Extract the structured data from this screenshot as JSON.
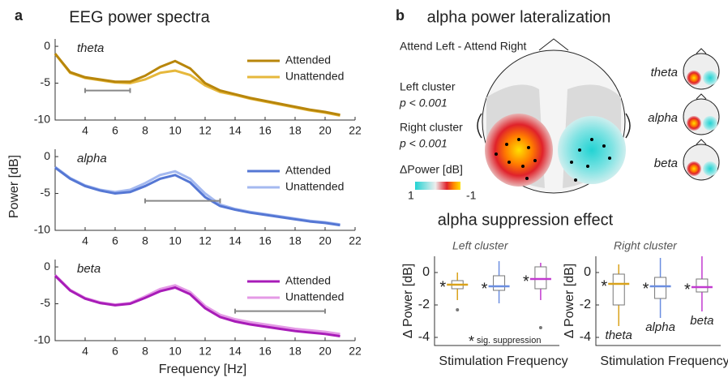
{
  "panel_labels": [
    "a",
    "b"
  ],
  "chart_data": [
    {
      "type": "line",
      "title": "EEG power spectra",
      "label": "theta",
      "ylabel": "Power [dB]",
      "x": [
        2,
        3,
        4,
        5,
        6,
        7,
        8,
        9,
        10,
        11,
        12,
        13,
        14,
        15,
        16,
        17,
        18,
        19,
        20,
        21
      ],
      "series": [
        {
          "name": "Attended",
          "color": "#b8860b",
          "values": [
            -1,
            -3.5,
            -4.2,
            -4.5,
            -4.8,
            -4.8,
            -4,
            -2.8,
            -2,
            -3,
            -5,
            -6,
            -6.5,
            -7,
            -7.4,
            -7.8,
            -8.2,
            -8.6,
            -8.9,
            -9.3
          ]
        },
        {
          "name": "Unattended",
          "color": "#e6b83c",
          "values": [
            -1,
            -3.6,
            -4.3,
            -4.6,
            -4.9,
            -5,
            -4.5,
            -3.6,
            -3.3,
            -3.9,
            -5.3,
            -6.2,
            -6.6,
            -7.1,
            -7.5,
            -7.9,
            -8.3,
            -8.7,
            -9,
            -9.4
          ]
        }
      ],
      "significance_bar": {
        "x": [
          4,
          7
        ],
        "y": -6
      },
      "xlim": [
        2,
        22
      ],
      "xticks": [
        4,
        6,
        8,
        10,
        12,
        14,
        16,
        18,
        20,
        22
      ],
      "ylim": [
        -10,
        1
      ],
      "yticks": [
        0,
        -5,
        -10
      ]
    },
    {
      "type": "line",
      "label": "alpha",
      "x": [
        2,
        3,
        4,
        5,
        6,
        7,
        8,
        9,
        10,
        11,
        12,
        13,
        14,
        15,
        16,
        17,
        18,
        19,
        20,
        21
      ],
      "series": [
        {
          "name": "Attended",
          "color": "#5577d4",
          "values": [
            -1.5,
            -3,
            -4,
            -4.6,
            -5,
            -4.8,
            -4,
            -3,
            -2.5,
            -3.5,
            -5.5,
            -6.7,
            -7.2,
            -7.6,
            -7.9,
            -8.2,
            -8.5,
            -8.8,
            -9,
            -9.3
          ]
        },
        {
          "name": "Unattended",
          "color": "#a4b9f0",
          "values": [
            -1.4,
            -2.9,
            -3.9,
            -4.5,
            -4.8,
            -4.5,
            -3.6,
            -2.5,
            -2,
            -3,
            -5,
            -6.5,
            -7.1,
            -7.5,
            -7.8,
            -8.1,
            -8.4,
            -8.7,
            -8.9,
            -9.2
          ]
        }
      ],
      "significance_bar": {
        "x": [
          8,
          13
        ],
        "y": -6
      },
      "xlim": [
        2,
        22
      ],
      "xticks": [
        4,
        6,
        8,
        10,
        12,
        14,
        16,
        18,
        20,
        22
      ],
      "ylim": [
        -10,
        1
      ],
      "yticks": [
        0,
        -5,
        -10
      ]
    },
    {
      "type": "line",
      "label": "beta",
      "xlabel": "Frequency [Hz]",
      "x": [
        2,
        3,
        4,
        5,
        6,
        7,
        8,
        9,
        10,
        11,
        12,
        13,
        14,
        15,
        16,
        17,
        18,
        19,
        20,
        21
      ],
      "series": [
        {
          "name": "Attended",
          "color": "#a81cb8",
          "values": [
            -1.2,
            -3.2,
            -4.3,
            -4.9,
            -5.2,
            -5,
            -4.2,
            -3.3,
            -2.8,
            -3.7,
            -5.6,
            -6.8,
            -7.4,
            -7.8,
            -8.1,
            -8.4,
            -8.7,
            -8.9,
            -9.1,
            -9.4
          ]
        },
        {
          "name": "Unattended",
          "color": "#e49ae6",
          "values": [
            -1.1,
            -3.1,
            -4.2,
            -4.8,
            -5.1,
            -4.9,
            -4,
            -3,
            -2.5,
            -3.4,
            -5.3,
            -6.5,
            -7.1,
            -7.5,
            -7.8,
            -8.1,
            -8.4,
            -8.6,
            -8.8,
            -9.1
          ]
        }
      ],
      "significance_bar": {
        "x": [
          14,
          20
        ],
        "y": -6
      },
      "xlim": [
        2,
        22
      ],
      "xticks": [
        4,
        6,
        8,
        10,
        12,
        14,
        16,
        18,
        20,
        22
      ],
      "ylim": [
        -10,
        1
      ],
      "yticks": [
        0,
        -5,
        -10
      ]
    },
    {
      "type": "box",
      "title": "alpha suppression effect",
      "subtitle": "Left cluster",
      "xlabel": "Stimulation Frequency",
      "ylabel": "Δ Power [dB]",
      "categories": [
        null,
        null,
        null
      ],
      "markers": [
        "*",
        "*",
        "*"
      ],
      "boxes": [
        {
          "color": "#d9a21b",
          "low": -1.7,
          "q1": -1.0,
          "median": -0.75,
          "q3": -0.5,
          "high": 0,
          "outliers": [
            -2.3
          ]
        },
        {
          "color": "#6b8ee0",
          "low": -1.9,
          "q1": -1.1,
          "median": -0.85,
          "q3": -0.2,
          "high": 0.7,
          "outliers": []
        },
        {
          "color": "#c23ad0",
          "low": -1.7,
          "q1": -1.0,
          "median": -0.4,
          "q3": 0.35,
          "high": 0.6,
          "outliers": [
            -3.4
          ]
        }
      ],
      "note_symbol": "*",
      "note": "sig. suppression",
      "ylim": [
        -4.5,
        1
      ],
      "yticks": [
        0,
        -2,
        -4
      ]
    },
    {
      "type": "box",
      "subtitle": "Right cluster",
      "xlabel": "Stimulation Frequency",
      "ylabel": "Δ Power [dB]",
      "categories": [
        "theta",
        "alpha",
        "beta"
      ],
      "markers": [
        "*",
        "*",
        "*"
      ],
      "boxes": [
        {
          "color": "#d9a21b",
          "low": -3.3,
          "q1": -2.0,
          "median": -0.7,
          "q3": -0.1,
          "high": 0.5,
          "outliers": []
        },
        {
          "color": "#6b8ee0",
          "low": -2.8,
          "q1": -1.6,
          "median": -0.85,
          "q3": -0.3,
          "high": 0.9,
          "outliers": []
        },
        {
          "color": "#c23ad0",
          "low": -2.4,
          "q1": -1.2,
          "median": -0.9,
          "q3": -0.4,
          "high": 1.0,
          "outliers": []
        }
      ],
      "ylim": [
        -4.5,
        1
      ],
      "yticks": [
        0,
        -2,
        -4
      ]
    }
  ],
  "topography": {
    "title": "alpha power lateralization",
    "contrast": "Attend Left - Attend Right",
    "left_cluster": "Left cluster",
    "left_p": "p < 0.001",
    "right_cluster": "Right cluster",
    "right_p": "p < 0.001",
    "colorbar": {
      "label": "ΔPower [dB]",
      "ticks": [
        1,
        -1
      ]
    },
    "small_maps": [
      "theta",
      "alpha",
      "beta"
    ]
  }
}
